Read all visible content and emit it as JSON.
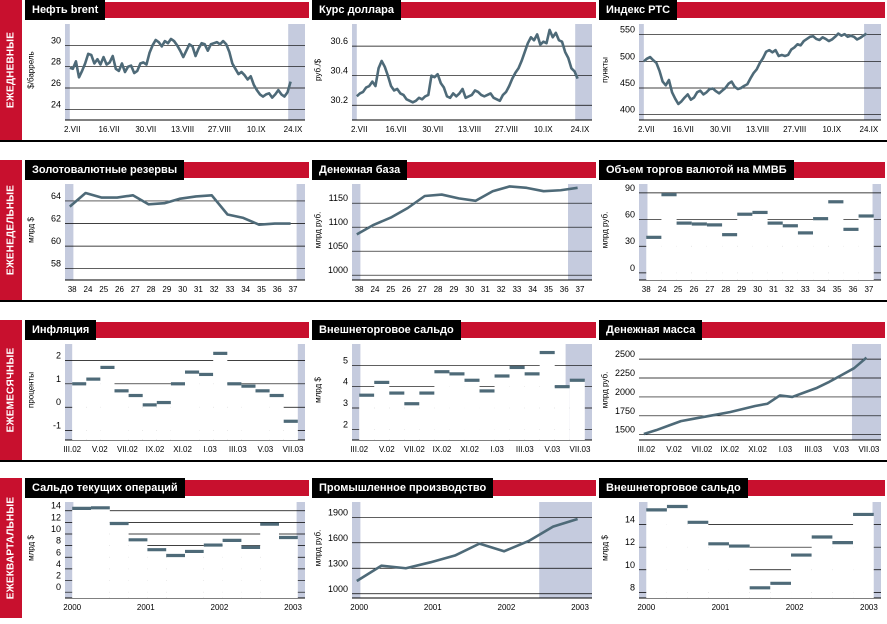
{
  "colors": {
    "accent": "#c8102e",
    "band": "#c5cbde",
    "line": "#4e6a78",
    "grid": "#000000"
  },
  "rows": [
    {
      "label": "ЕЖЕДНЕВНЫЕ",
      "charts": [
        {
          "title": "Нефть brent",
          "ylabel": "$/баррель",
          "chart_data": {
            "type": "line",
            "ylim": [
              23,
              32
            ],
            "yticks": [
              24,
              26,
              28,
              30
            ],
            "xlabels": [
              "2.VII",
              "16.VII",
              "30.VII",
              "13.VIII",
              "27.VIII",
              "10.IX",
              "24.IX"
            ],
            "values": [
              27.9,
              27.8,
              28.5,
              27,
              27.6,
              28.3,
              29.2,
              29.1,
              28.3,
              28.7,
              28.2,
              28.9,
              28.2,
              28.4,
              29,
              27.8,
              27.6,
              28.3,
              27.5,
              28,
              28.1,
              27.4,
              27.6,
              28.3,
              28.4,
              28.2,
              29.3,
              30,
              30.5,
              30.3,
              29.9,
              30.4,
              30.2,
              30.6,
              30.4,
              30,
              29.5,
              28.9,
              29.5,
              30.1,
              29.9,
              29,
              29.7,
              30.2,
              30.1,
              29.5,
              30.1,
              30.2,
              30.3,
              30.1,
              30.4,
              30.1,
              29.4,
              28.3,
              27.8,
              27.3,
              27.5,
              27.2,
              26.8,
              27.1,
              26.3,
              25.8,
              25.4,
              25.2,
              25.4,
              25.5,
              25.1,
              25.4,
              25.8,
              25.4,
              25.2,
              25.6,
              26.6
            ],
            "bands": [
              [
                0,
                0.02
              ],
              [
                0.93,
                1
              ]
            ]
          }
        },
        {
          "title": "Курс доллара",
          "ylabel": "руб./$",
          "chart_data": {
            "type": "line",
            "ylim": [
              30.1,
              30.75
            ],
            "yticks": [
              30.2,
              30.4,
              30.6
            ],
            "xlabels": [
              "2.VII",
              "16.VII",
              "30.VII",
              "13.VIII",
              "27.VIII",
              "10.IX",
              "24.IX"
            ],
            "values": [
              30.26,
              30.28,
              30.29,
              30.32,
              30.33,
              30.36,
              30.33,
              30.45,
              30.5,
              30.46,
              30.4,
              30.33,
              30.3,
              30.31,
              30.28,
              30.27,
              30.24,
              30.23,
              30.22,
              30.23,
              30.25,
              30.24,
              30.26,
              30.27,
              30.4,
              30.39,
              30.41,
              30.35,
              30.32,
              30.26,
              30.25,
              30.28,
              30.26,
              30.28,
              30.31,
              30.25,
              30.26,
              30.27,
              30.3,
              30.29,
              30.27,
              30.26,
              30.27,
              30.28,
              30.25,
              30.24,
              30.23,
              30.27,
              30.29,
              30.33,
              30.38,
              30.42,
              30.45,
              30.5,
              30.56,
              30.62,
              30.66,
              30.64,
              30.68,
              30.61,
              30.63,
              30.62,
              30.71,
              30.66,
              30.69,
              30.64,
              30.63,
              30.56,
              30.52,
              30.45,
              30.43,
              30.38
            ],
            "bands": [
              [
                0,
                0.02
              ],
              [
                0.93,
                1
              ]
            ]
          }
        },
        {
          "title": "Индекс РТС",
          "ylabel": "пункты",
          "chart_data": {
            "type": "line",
            "ylim": [
              390,
              570
            ],
            "yticks": [
              400,
              450,
              500,
              550
            ],
            "xlabels": [
              "2.VII",
              "16.VII",
              "30.VII",
              "13.VIII",
              "27.VIII",
              "10.IX",
              "24.IX"
            ],
            "values": [
              500,
              505,
              508,
              502,
              497,
              482,
              462,
              455,
              465,
              442,
              430,
              420,
              425,
              432,
              438,
              428,
              432,
              442,
              445,
              438,
              442,
              448,
              449,
              444,
              440,
              445,
              450,
              458,
              462,
              452,
              448,
              450,
              454,
              457,
              468,
              478,
              485,
              497,
              506,
              518,
              521,
              517,
              521,
              510,
              512,
              510,
              512,
              522,
              526,
              532,
              530,
              538,
              542,
              546,
              547,
              542,
              540,
              545,
              542,
              538,
              541,
              546,
              552,
              548,
              551,
              546,
              548,
              546,
              541,
              544,
              548,
              552
            ],
            "bands": [
              [
                0,
                0.02
              ],
              [
                0.93,
                1
              ]
            ]
          }
        }
      ]
    },
    {
      "label": "ЕЖЕНЕДЕЛЬНЫЕ",
      "charts": [
        {
          "title": "Золотовалютные резервы",
          "ylabel": "млрд $",
          "chart_data": {
            "type": "line",
            "ylim": [
              57,
              65.5
            ],
            "yticks": [
              58,
              60,
              62,
              64
            ],
            "xlabels": [
              "38",
              "24",
              "25",
              "26",
              "27",
              "28",
              "29",
              "30",
              "31",
              "32",
              "33",
              "34",
              "35",
              "36",
              "37"
            ],
            "values": [
              63.5,
              64.7,
              64.3,
              64.3,
              64.5,
              63.7,
              63.8,
              64.2,
              64.4,
              64.5,
              62.8,
              62.5,
              61.9,
              62,
              62
            ],
            "bands": [
              [
                0,
                0.035
              ],
              [
                0.965,
                1
              ]
            ]
          }
        },
        {
          "title": "Денежная база",
          "ylabel": "млрд руб.",
          "chart_data": {
            "type": "line",
            "ylim": [
              990,
              1190
            ],
            "yticks": [
              1000,
              1050,
              1100,
              1150
            ],
            "xlabels": [
              "38",
              "24",
              "25",
              "26",
              "27",
              "28",
              "29",
              "30",
              "31",
              "32",
              "33",
              "34",
              "35",
              "36",
              "37"
            ],
            "values": [
              1085,
              1105,
              1120,
              1140,
              1165,
              1168,
              1160,
              1155,
              1175,
              1185,
              1182,
              1175,
              1177,
              1182
            ],
            "bands": [
              [
                0,
                0.035
              ],
              [
                0.9,
                1
              ]
            ]
          }
        },
        {
          "title": "Объем торгов валютой на ММВБ",
          "ylabel": "млрд руб.",
          "chart_data": {
            "type": "step",
            "ylim": [
              -8,
              100
            ],
            "yticks": [
              0,
              30,
              60,
              90
            ],
            "xlabels": [
              "38",
              "24",
              "25",
              "26",
              "27",
              "28",
              "29",
              "30",
              "31",
              "32",
              "33",
              "34",
              "35",
              "36",
              "37"
            ],
            "values": [
              40,
              88,
              56,
              55,
              54,
              43,
              66,
              68,
              56,
              53,
              45,
              61,
              80,
              49,
              64
            ],
            "bands": [
              [
                0,
                0.035
              ],
              [
                0.965,
                1
              ]
            ]
          }
        }
      ]
    },
    {
      "label": "ЕЖЕМЕСЯЧНЫЕ",
      "charts": [
        {
          "title": "Инфляция",
          "ylabel": "проценты",
          "chart_data": {
            "type": "step",
            "ylim": [
              -1.4,
              2.7
            ],
            "yticks": [
              -1,
              0,
              1,
              2
            ],
            "xlabels": [
              "III.02",
              "V.02",
              "VII.02",
              "IX.02",
              "XI.02",
              "I.03",
              "III.03",
              "V.03",
              "VII.03"
            ],
            "values": [
              1,
              1.2,
              1.7,
              0.7,
              0.5,
              0.1,
              0.2,
              1,
              1.5,
              1.4,
              2.3,
              1,
              0.9,
              0.7,
              0.5,
              -0.6
            ],
            "bands": [
              [
                0,
                0.03
              ],
              [
                0.97,
                1
              ]
            ]
          }
        },
        {
          "title": "Внешнеторговое сальдо",
          "ylabel": "млрд $",
          "chart_data": {
            "type": "step",
            "ylim": [
              1.5,
              6
            ],
            "yticks": [
              2,
              3,
              4,
              5
            ],
            "xlabels": [
              "III.02",
              "V.02",
              "VII.02",
              "IX.02",
              "XI.02",
              "I.03",
              "III.03",
              "V.03",
              "VII.03"
            ],
            "values": [
              3.6,
              4.2,
              3.7,
              3.2,
              3.7,
              4.7,
              4.6,
              4.3,
              3.8,
              4.5,
              4.9,
              4.6,
              5.6,
              4,
              4.3
            ],
            "bands": [
              [
                0,
                0.035
              ],
              [
                0.89,
                1
              ]
            ]
          }
        },
        {
          "title": "Денежная масса",
          "ylabel": "млрд руб.",
          "chart_data": {
            "type": "line",
            "ylim": [
              1430,
              2700
            ],
            "yticks": [
              1500,
              1750,
              2000,
              2250,
              2500
            ],
            "xlabels": [
              "III.02",
              "V.02",
              "VII.02",
              "IX.02",
              "XI.02",
              "I.03",
              "III.03",
              "V.03",
              "VII.03"
            ],
            "values": [
              1510,
              1560,
              1620,
              1680,
              1710,
              1740,
              1770,
              1800,
              1840,
              1880,
              1910,
              2020,
              2000,
              2060,
              2120,
              2200,
              2290,
              2380,
              2520
            ],
            "bands": [
              [
                0.88,
                1
              ]
            ]
          }
        }
      ]
    },
    {
      "label": "ЕЖЕКВАРТАЛЬНЫЕ",
      "charts": [
        {
          "title": "Сальдо текущих операций",
          "ylabel": "млрд $",
          "chart_data": {
            "type": "step",
            "ylim": [
              -1,
              15.5
            ],
            "yticks": [
              0,
              2,
              4,
              6,
              8,
              10,
              12,
              14
            ],
            "xlabels": [
              "2000",
              "2001",
              "2002",
              "2003"
            ],
            "values": [
              14.4,
              14.5,
              11.8,
              9,
              7.3,
              6.3,
              7,
              8.1,
              8.9,
              7.7,
              11.7,
              9.4
            ],
            "bands": [
              [
                0,
                0.035
              ],
              [
                0.965,
                1
              ]
            ]
          }
        },
        {
          "title": "Промышленное производство",
          "ylabel": "млрд руб.",
          "chart_data": {
            "type": "line",
            "ylim": [
              950,
              2080
            ],
            "yticks": [
              1000,
              1300,
              1600,
              1900
            ],
            "xlabels": [
              "2000",
              "2001",
              "2002",
              "2003"
            ],
            "values": [
              1150,
              1330,
              1300,
              1370,
              1450,
              1590,
              1500,
              1620,
              1790,
              1880
            ],
            "bands": [
              [
                0,
                0.035
              ],
              [
                0.78,
                1
              ]
            ]
          }
        },
        {
          "title": "Внешнеторговое сальдо",
          "ylabel": "млрд $",
          "chart_data": {
            "type": "step",
            "ylim": [
              7.5,
              16
            ],
            "yticks": [
              8,
              10,
              12,
              14
            ],
            "xlabels": [
              "2000",
              "2001",
              "2002",
              "2003"
            ],
            "values": [
              15.3,
              15.6,
              14.2,
              12.3,
              12.1,
              8.4,
              8.8,
              11.3,
              12.9,
              12.4,
              14.9
            ],
            "bands": [
              [
                0,
                0.035
              ],
              [
                0.965,
                1
              ]
            ]
          }
        }
      ]
    }
  ]
}
